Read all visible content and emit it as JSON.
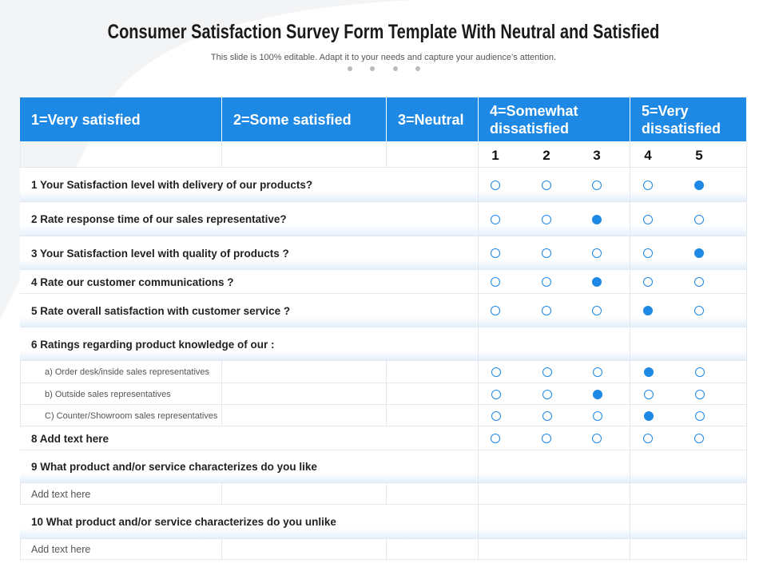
{
  "header": {
    "title": "Consumer Satisfaction Survey Form Template With Neutral and Satisfied",
    "subtitle": "This slide is 100% editable. Adapt it to your needs and capture your audience’s attention."
  },
  "table": {
    "columns": [
      "1=Very satisfied",
      "2=Some satisfied",
      "3=Neutral",
      "4=Somewhat dissatisfied",
      "5=Very dissatisfied"
    ],
    "rating_scale": [
      "1",
      "2",
      "3",
      "4",
      "5"
    ],
    "rows": [
      {
        "label": "1 Your Satisfaction level with delivery of our products?",
        "selected": 5
      },
      {
        "label": "2 Rate response time of our sales representative?",
        "selected": 3
      },
      {
        "label": "3 Your Satisfaction level with quality of products ?",
        "selected": 5
      },
      {
        "label": "4 Rate our customer communications  ?",
        "selected": 3
      },
      {
        "label": "5 Rate overall satisfaction with customer service  ?",
        "selected": 4
      },
      {
        "label": "6 Ratings regarding  product knowledge of our :"
      },
      {
        "label": "a) Order desk/inside sales representatives",
        "selected": 4
      },
      {
        "label": "b) Outside sales representatives",
        "selected": 3
      },
      {
        "label": "C) Counter/Showroom sales representatives",
        "selected": 4
      },
      {
        "label": "8 Add text here",
        "selected": null
      },
      {
        "label": "9 What product and/or service characterizes do you like"
      },
      {
        "label": "Add text here"
      },
      {
        "label": "10 What product and/or service characterizes do you unlike"
      },
      {
        "label": "Add text here"
      }
    ]
  }
}
